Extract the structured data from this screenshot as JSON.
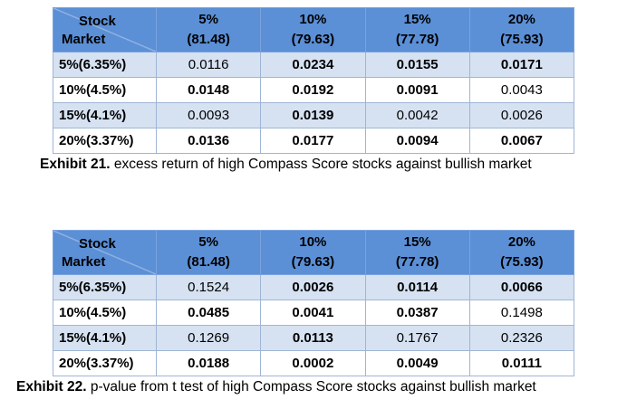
{
  "exhibits": [
    {
      "corner_top": "Stock",
      "corner_bottom": "Market",
      "columns": [
        {
          "pct": "5%",
          "sub": "(81.48)"
        },
        {
          "pct": "10%",
          "sub": "(79.63)"
        },
        {
          "pct": "15%",
          "sub": "(77.78)"
        },
        {
          "pct": "20%",
          "sub": "(75.93)"
        }
      ],
      "rows": [
        {
          "label": "5%(6.35%)",
          "cells": [
            {
              "v": "0.0116",
              "bold": false
            },
            {
              "v": "0.0234",
              "bold": true
            },
            {
              "v": "0.0155",
              "bold": true
            },
            {
              "v": "0.0171",
              "bold": true
            }
          ]
        },
        {
          "label": "10%(4.5%)",
          "cells": [
            {
              "v": "0.0148",
              "bold": true
            },
            {
              "v": "0.0192",
              "bold": true
            },
            {
              "v": "0.0091",
              "bold": true
            },
            {
              "v": "0.0043",
              "bold": false
            }
          ]
        },
        {
          "label": "15%(4.1%)",
          "cells": [
            {
              "v": "0.0093",
              "bold": false
            },
            {
              "v": "0.0139",
              "bold": true
            },
            {
              "v": "0.0042",
              "bold": false
            },
            {
              "v": "0.0026",
              "bold": false
            }
          ]
        },
        {
          "label": "20%(3.37%)",
          "cells": [
            {
              "v": "0.0136",
              "bold": true
            },
            {
              "v": "0.0177",
              "bold": true
            },
            {
              "v": "0.0094",
              "bold": true
            },
            {
              "v": "0.0067",
              "bold": true
            }
          ]
        }
      ],
      "caption_label": "Exhibit 21.",
      "caption_text": " excess return of high Compass Score stocks against bullish market"
    },
    {
      "corner_top": "Stock",
      "corner_bottom": "Market",
      "columns": [
        {
          "pct": "5%",
          "sub": "(81.48)"
        },
        {
          "pct": "10%",
          "sub": "(79.63)"
        },
        {
          "pct": "15%",
          "sub": "(77.78)"
        },
        {
          "pct": "20%",
          "sub": "(75.93)"
        }
      ],
      "rows": [
        {
          "label": "5%(6.35%)",
          "cells": [
            {
              "v": "0.1524",
              "bold": false
            },
            {
              "v": "0.0026",
              "bold": true
            },
            {
              "v": "0.0114",
              "bold": true
            },
            {
              "v": "0.0066",
              "bold": true
            }
          ]
        },
        {
          "label": "10%(4.5%)",
          "cells": [
            {
              "v": "0.0485",
              "bold": true
            },
            {
              "v": "0.0041",
              "bold": true
            },
            {
              "v": "0.0387",
              "bold": true
            },
            {
              "v": "0.1498",
              "bold": false
            }
          ]
        },
        {
          "label": "15%(4.1%)",
          "cells": [
            {
              "v": "0.1269",
              "bold": false
            },
            {
              "v": "0.0113",
              "bold": true
            },
            {
              "v": "0.1767",
              "bold": false
            },
            {
              "v": "0.2326",
              "bold": false
            }
          ]
        },
        {
          "label": "20%(3.37%)",
          "cells": [
            {
              "v": "0.0188",
              "bold": true
            },
            {
              "v": "0.0002",
              "bold": true
            },
            {
              "v": "0.0049",
              "bold": true
            },
            {
              "v": "0.0111",
              "bold": true
            }
          ]
        }
      ],
      "caption_label": "Exhibit 22.",
      "caption_text": " p-value from t test of high Compass Score stocks against bullish market"
    }
  ],
  "colors": {
    "header_bg": "#5b8fd6",
    "row_band": "#d6e2f2",
    "row_plain": "#ffffff"
  }
}
